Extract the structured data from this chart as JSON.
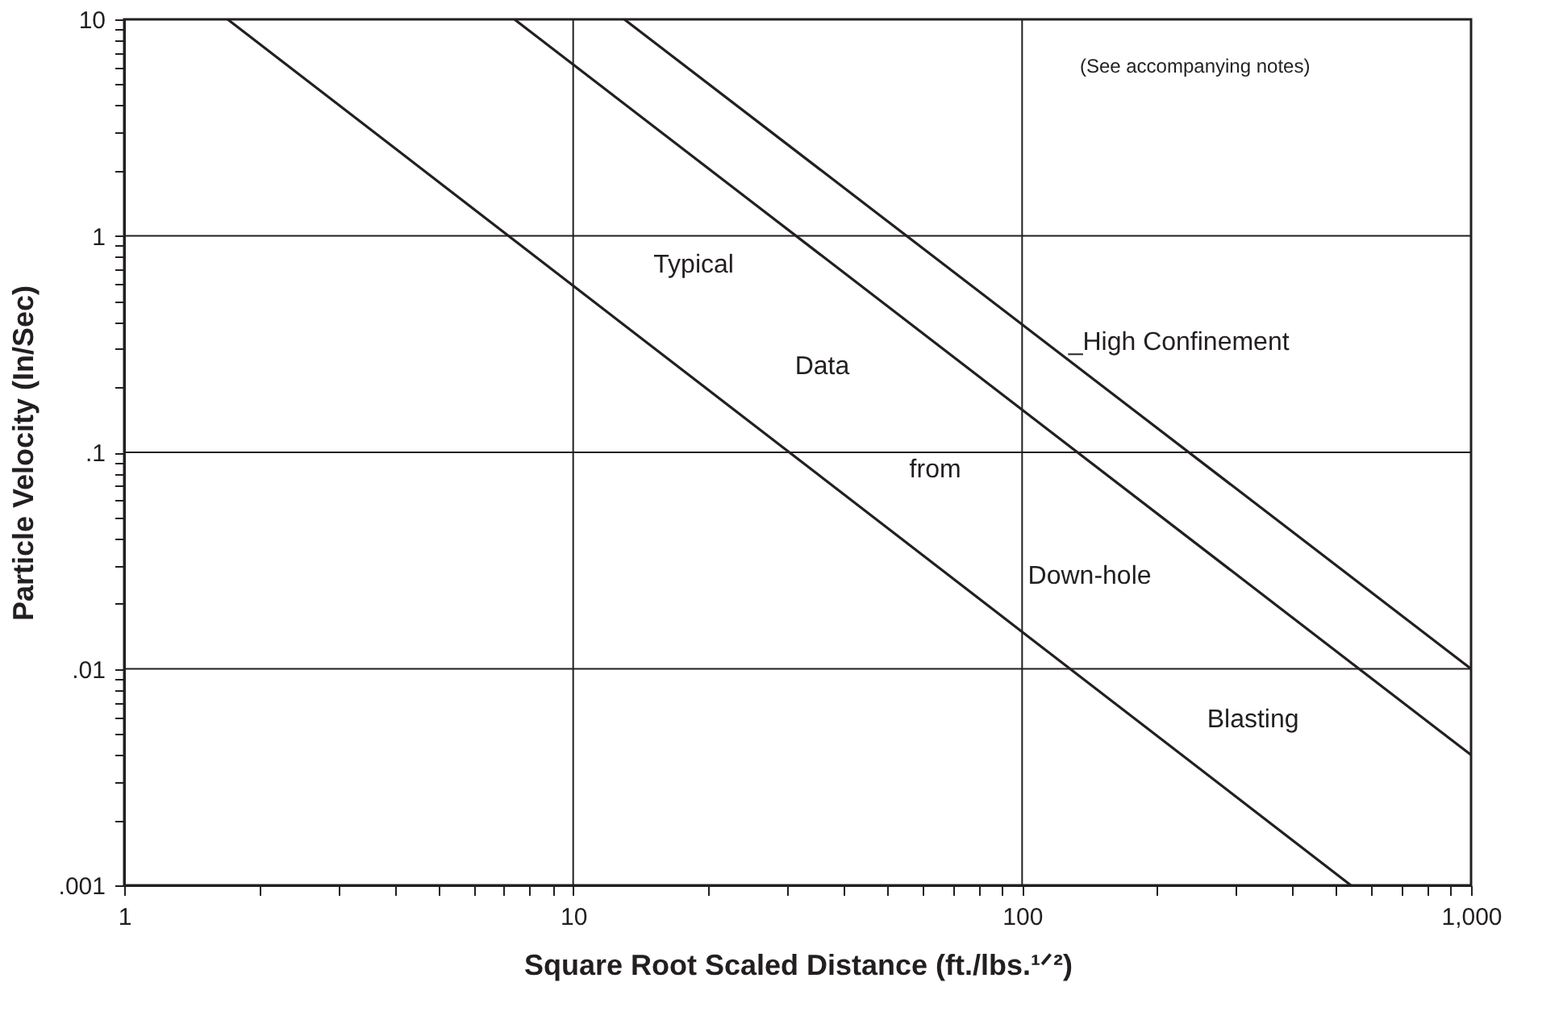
{
  "chart_data": {
    "type": "line",
    "xlabel": "Square Root Scaled Distance  (ft./lbs.¹ᐟ²)",
    "ylabel": "Particle Velocity  (In/Sec)",
    "log": "xy",
    "grid": true,
    "line_style": "solid",
    "marker": "none",
    "xlim": [
      1,
      1000
    ],
    "ylim": [
      0.001,
      10
    ],
    "xticks": [
      {
        "value": 1,
        "label": "1"
      },
      {
        "value": 2,
        "label": null
      },
      {
        "value": 3,
        "label": null
      },
      {
        "value": 4,
        "label": null
      },
      {
        "value": 5,
        "label": null
      },
      {
        "value": 6,
        "label": null
      },
      {
        "value": 7,
        "label": null
      },
      {
        "value": 8,
        "label": null
      },
      {
        "value": 9,
        "label": null
      },
      {
        "value": 10,
        "label": "10"
      },
      {
        "value": 20,
        "label": null
      },
      {
        "value": 30,
        "label": null
      },
      {
        "value": 40,
        "label": null
      },
      {
        "value": 50,
        "label": null
      },
      {
        "value": 60,
        "label": null
      },
      {
        "value": 70,
        "label": null
      },
      {
        "value": 80,
        "label": null
      },
      {
        "value": 90,
        "label": null
      },
      {
        "value": 100,
        "label": "100"
      },
      {
        "value": 200,
        "label": null
      },
      {
        "value": 300,
        "label": null
      },
      {
        "value": 400,
        "label": null
      },
      {
        "value": 500,
        "label": null
      },
      {
        "value": 600,
        "label": null
      },
      {
        "value": 700,
        "label": null
      },
      {
        "value": 800,
        "label": null
      },
      {
        "value": 900,
        "label": null
      },
      {
        "value": 1000,
        "label": "1,000"
      }
    ],
    "yticks": [
      {
        "value": 0.001,
        "label": ".001"
      },
      {
        "value": 0.002,
        "label": null
      },
      {
        "value": 0.003,
        "label": null
      },
      {
        "value": 0.004,
        "label": null
      },
      {
        "value": 0.005,
        "label": null
      },
      {
        "value": 0.006,
        "label": null
      },
      {
        "value": 0.007,
        "label": null
      },
      {
        "value": 0.008,
        "label": null
      },
      {
        "value": 0.009,
        "label": null
      },
      {
        "value": 0.01,
        "label": ".01"
      },
      {
        "value": 0.02,
        "label": null
      },
      {
        "value": 0.03,
        "label": null
      },
      {
        "value": 0.04,
        "label": null
      },
      {
        "value": 0.05,
        "label": null
      },
      {
        "value": 0.06,
        "label": null
      },
      {
        "value": 0.07,
        "label": null
      },
      {
        "value": 0.08,
        "label": null
      },
      {
        "value": 0.09,
        "label": null
      },
      {
        "value": 0.1,
        "label": ".1"
      },
      {
        "value": 0.2,
        "label": null
      },
      {
        "value": 0.3,
        "label": null
      },
      {
        "value": 0.4,
        "label": null
      },
      {
        "value": 0.5,
        "label": null
      },
      {
        "value": 0.6,
        "label": null
      },
      {
        "value": 0.7,
        "label": null
      },
      {
        "value": 0.8,
        "label": null
      },
      {
        "value": 0.9,
        "label": null
      },
      {
        "value": 1,
        "label": "1"
      },
      {
        "value": 2,
        "label": null
      },
      {
        "value": 3,
        "label": null
      },
      {
        "value": 4,
        "label": null
      },
      {
        "value": 5,
        "label": null
      },
      {
        "value": 6,
        "label": null
      },
      {
        "value": 7,
        "label": null
      },
      {
        "value": 8,
        "label": null
      },
      {
        "value": 9,
        "label": null
      },
      {
        "value": 10,
        "label": "10"
      }
    ],
    "series": [
      {
        "color": "#231f20",
        "x": [
          1.7,
          540
        ],
        "values": [
          10,
          0.001
        ]
      },
      {
        "color": "#231f20",
        "x": [
          7.4,
          1000
        ],
        "values": [
          10,
          0.004
        ]
      },
      {
        "color": "#231f20",
        "x": [
          13,
          1000
        ],
        "values": [
          10,
          0.01
        ]
      }
    ],
    "annotations": [
      "Typical",
      "Data",
      "from",
      "Down-hole",
      "Blasting",
      "_High Confinement",
      "(See accompanying notes)"
    ]
  }
}
